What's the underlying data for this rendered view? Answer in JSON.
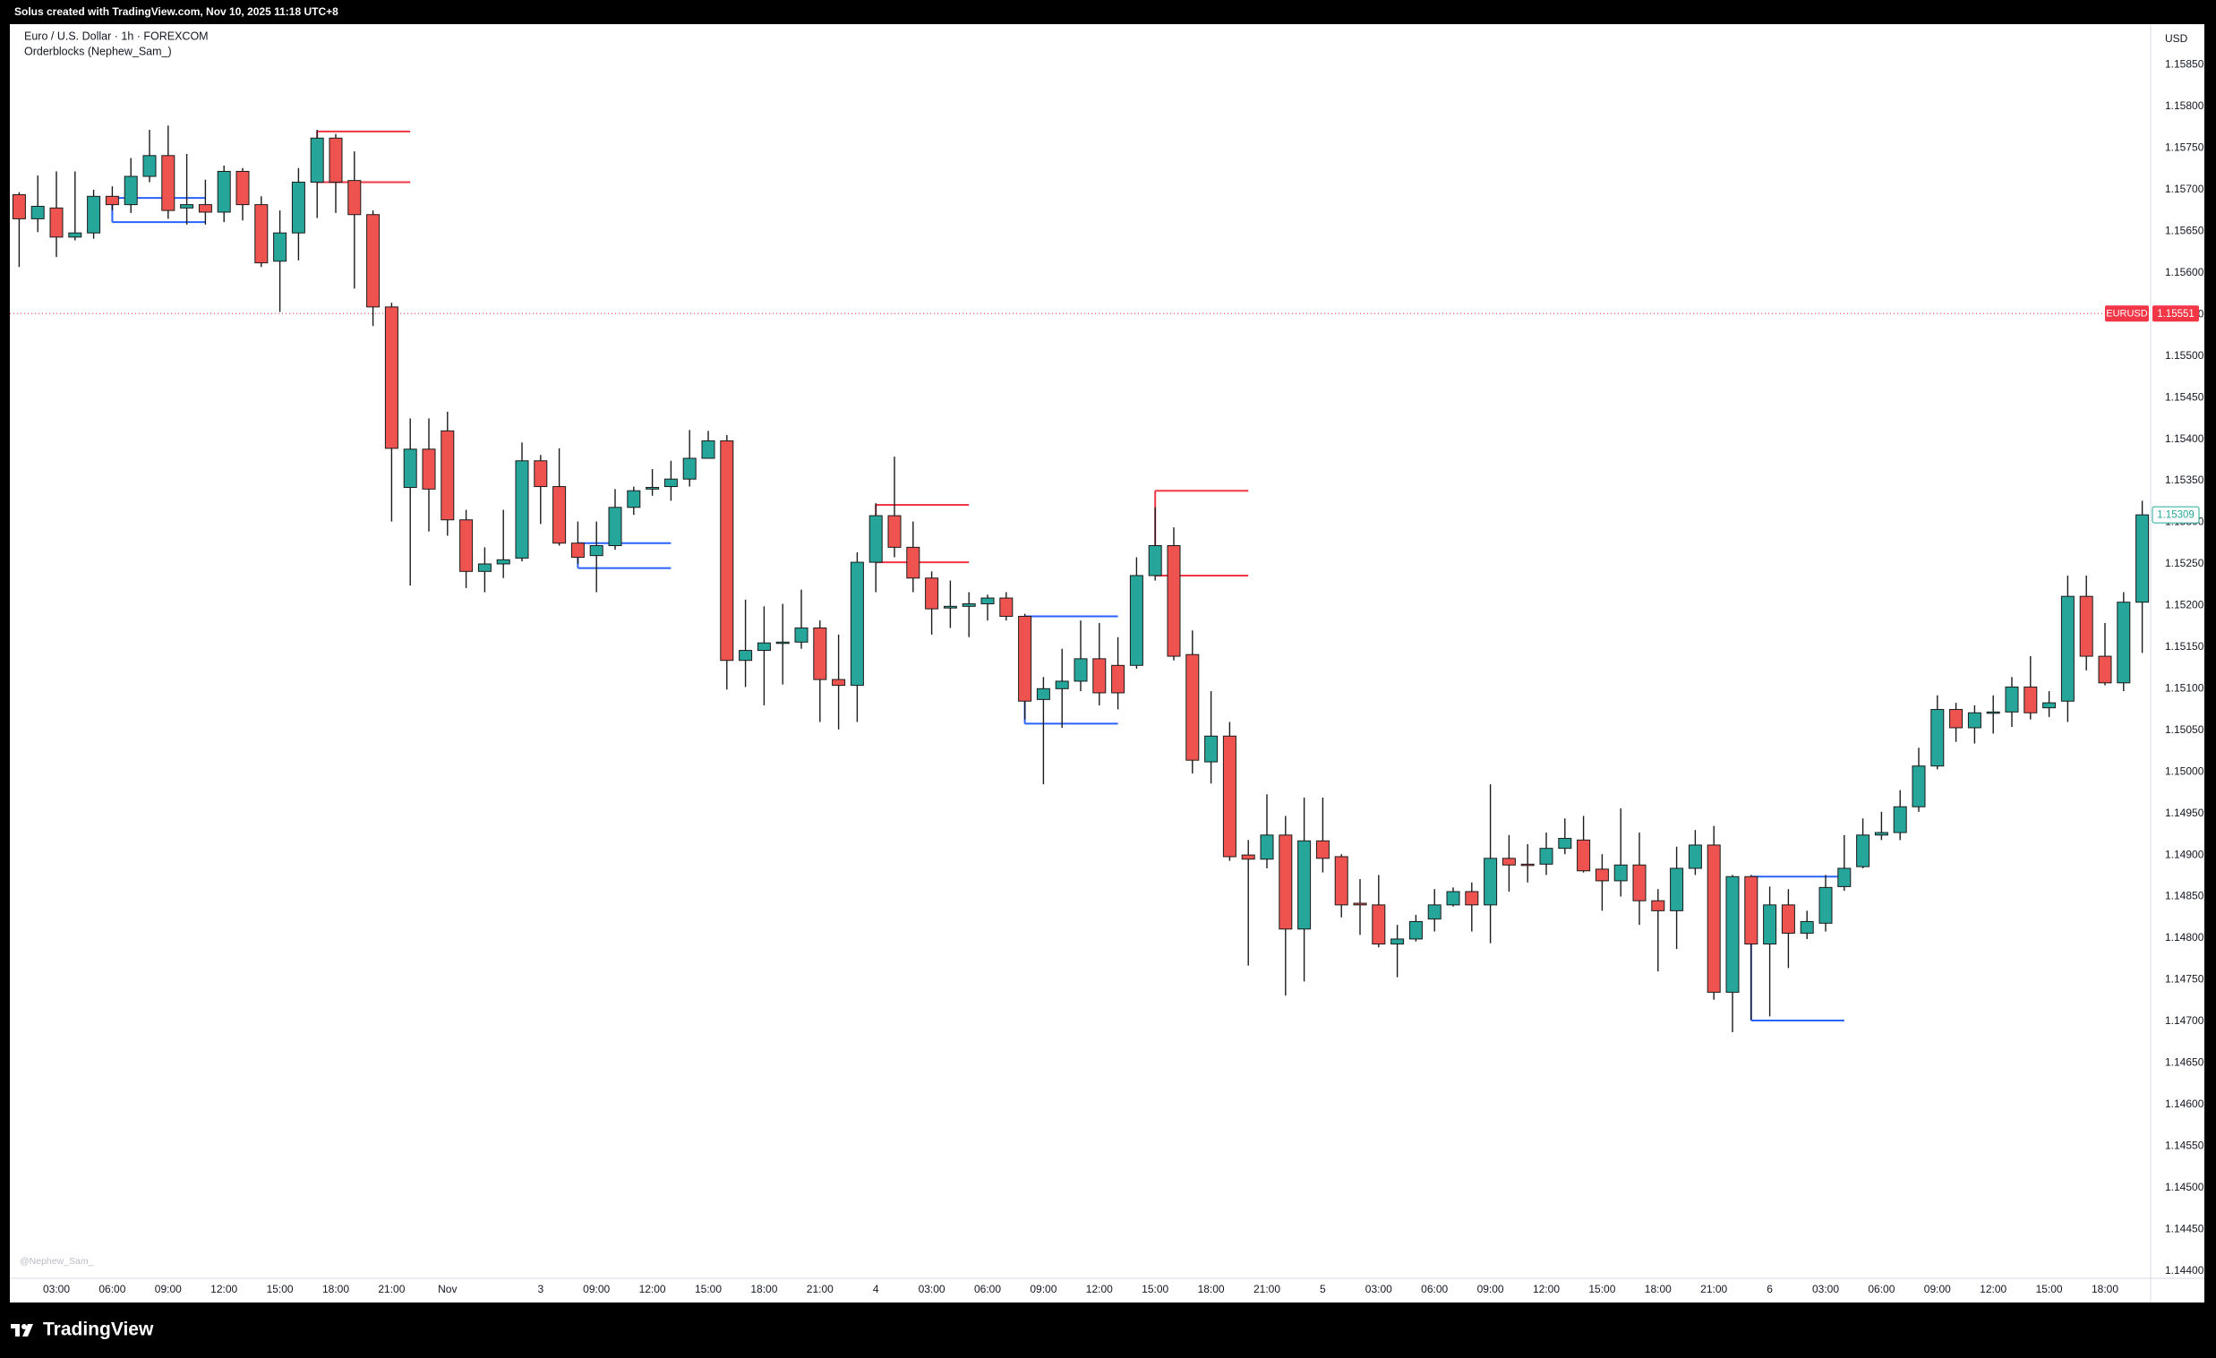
{
  "header": {
    "attribution": "Solus created with TradingView.com, Nov 10, 2025 11:18 UTC+8"
  },
  "footer": {
    "brand": "TradingView"
  },
  "chart_data": {
    "type": "candlestick",
    "title": "Euro / U.S. Dollar · 1h · FOREXCOM",
    "subtitle": "Orderblocks (Nephew_Sam_)",
    "watermark": "@Nephew_Sam_",
    "currency": "USD",
    "up_color": "#26a69a",
    "down_color": "#ef5350",
    "categories": [
      null,
      null,
      "03:00",
      null,
      null,
      "06:00",
      null,
      null,
      "09:00",
      null,
      null,
      "12:00",
      null,
      null,
      "15:00",
      null,
      null,
      "18:00",
      null,
      null,
      "21:00",
      null,
      null,
      "Nov",
      null,
      null,
      null,
      null,
      "3",
      null,
      null,
      "09:00",
      null,
      null,
      "12:00",
      null,
      null,
      "15:00",
      null,
      null,
      "18:00",
      null,
      null,
      "21:00",
      null,
      null,
      "4",
      null,
      null,
      "03:00",
      null,
      null,
      "06:00",
      null,
      null,
      "09:00",
      null,
      null,
      "12:00",
      null,
      null,
      "15:00",
      null,
      null,
      "18:00",
      null,
      null,
      "21:00",
      null,
      null,
      "5",
      null,
      null,
      "03:00",
      null,
      null,
      "06:00",
      null,
      null,
      "09:00",
      null,
      null,
      "12:00",
      null,
      null,
      "15:00",
      null,
      null,
      "18:00",
      null,
      null,
      "21:00",
      null,
      null,
      "6",
      null,
      null,
      "03:00",
      null,
      null,
      "06:00",
      null,
      null,
      "09:00",
      null,
      null,
      "12:00",
      null,
      null,
      "15:00",
      null,
      null,
      "18:00",
      null,
      null
    ],
    "open": [
      1.15694,
      1.15665,
      1.15678,
      1.15643,
      1.15648,
      1.15692,
      1.15682,
      1.15716,
      1.15741,
      1.15678,
      1.15682,
      1.15673,
      1.15722,
      1.15682,
      1.15614,
      1.15648,
      1.15709,
      1.15762,
      1.15711,
      1.1567,
      1.15559,
      1.15342,
      1.15388,
      1.1541,
      1.15303,
      1.15241,
      1.1525,
      1.15257,
      1.15374,
      1.15343,
      1.15275,
      1.1526,
      1.15272,
      1.15318,
      1.1534,
      1.15343,
      1.15352,
      1.15377,
      1.15398,
      1.15134,
      1.15146,
      1.15155,
      1.15156,
      1.15173,
      1.15111,
      1.15104,
      1.15252,
      1.15308,
      1.1527,
      1.15233,
      1.15197,
      1.15199,
      1.15202,
      1.15209,
      1.15187,
      1.15087,
      1.151,
      1.15109,
      1.15136,
      1.15128,
      1.15128,
      1.15236,
      1.15272,
      1.15141,
      1.15012,
      1.15043,
      1.149,
      1.14895,
      1.14924,
      1.14811,
      1.14917,
      1.14898,
      1.14842,
      1.1484,
      1.14793,
      1.14799,
      1.14823,
      1.1484,
      1.14856,
      1.1484,
      1.14896,
      1.14889,
      1.14889,
      1.14908,
      1.14918,
      1.14883,
      1.14869,
      1.14888,
      1.14845,
      1.14833,
      1.14884,
      1.14912,
      1.14735,
      1.14874,
      1.14793,
      1.1484,
      1.14806,
      1.14818,
      1.14862,
      1.14886,
      1.14924,
      1.14927,
      1.14958,
      1.15007,
      1.15075,
      1.15053,
      1.15071,
      1.15072,
      1.15102,
      1.15077,
      1.15085,
      1.15211,
      1.15139,
      1.15107,
      1.15204
    ],
    "high": [
      1.15697,
      1.15717,
      1.15722,
      1.15722,
      1.157,
      1.15704,
      1.15738,
      1.15772,
      1.15777,
      1.15743,
      1.15712,
      1.15729,
      1.15726,
      1.15692,
      1.15675,
      1.15726,
      1.15772,
      1.15767,
      1.15746,
      1.15675,
      1.15564,
      1.15425,
      1.15425,
      1.15433,
      1.15315,
      1.1527,
      1.15315,
      1.15396,
      1.15381,
      1.15389,
      1.15301,
      1.15301,
      1.1534,
      1.15343,
      1.15364,
      1.15374,
      1.15411,
      1.1541,
      1.15405,
      1.15207,
      1.15199,
      1.15202,
      1.15219,
      1.15182,
      1.15165,
      1.15264,
      1.15323,
      1.15379,
      1.15301,
      1.15241,
      1.1523,
      1.15216,
      1.15213,
      1.15216,
      1.1519,
      1.15114,
      1.15148,
      1.15182,
      1.15179,
      1.15162,
      1.15258,
      1.15318,
      1.15294,
      1.1517,
      1.15097,
      1.1506,
      1.14918,
      1.14973,
      1.14947,
      1.14969,
      1.14969,
      1.14901,
      1.14871,
      1.14876,
      1.14816,
      1.14828,
      1.14859,
      1.14861,
      1.14867,
      1.14985,
      1.14924,
      1.14913,
      1.14927,
      1.14944,
      1.14947,
      1.14901,
      1.14956,
      1.14927,
      1.14859,
      1.1491,
      1.1493,
      1.14935,
      1.14876,
      1.14876,
      1.14862,
      1.14859,
      1.14833,
      1.14876,
      1.14924,
      1.14944,
      1.14952,
      1.14978,
      1.15029,
      1.15092,
      1.15083,
      1.1508,
      1.15092,
      1.15114,
      1.15139,
      1.15097,
      1.15236,
      1.15236,
      1.15179,
      1.15216,
      1.15326
    ],
    "low": [
      1.15607,
      1.15649,
      1.15619,
      1.15639,
      1.15641,
      1.15675,
      1.15672,
      1.15709,
      1.15665,
      1.15658,
      1.15658,
      1.15661,
      1.15663,
      1.15607,
      1.15553,
      1.15615,
      1.15666,
      1.15672,
      1.15581,
      1.15536,
      1.15301,
      1.15224,
      1.15289,
      1.15284,
      1.15221,
      1.15216,
      1.15233,
      1.15253,
      1.15298,
      1.15272,
      1.1525,
      1.15216,
      1.15267,
      1.15309,
      1.15332,
      1.15326,
      1.15343,
      1.15377,
      1.15099,
      1.15102,
      1.1508,
      1.15105,
      1.15148,
      1.1506,
      1.15051,
      1.1506,
      1.15216,
      1.15258,
      1.15216,
      1.15165,
      1.15173,
      1.15162,
      1.15182,
      1.15182,
      1.15063,
      1.14985,
      1.15053,
      1.15097,
      1.1508,
      1.15075,
      1.15124,
      1.1523,
      1.15134,
      1.14998,
      1.14986,
      1.14893,
      1.14767,
      1.14884,
      1.14731,
      1.14748,
      1.14879,
      1.14825,
      1.14804,
      1.14789,
      1.14753,
      1.14796,
      1.14808,
      1.14838,
      1.14808,
      1.14794,
      1.14856,
      1.14867,
      1.14876,
      1.14901,
      1.14879,
      1.14833,
      1.1485,
      1.14816,
      1.1476,
      1.14787,
      1.14876,
      1.14726,
      1.14687,
      1.14702,
      1.14706,
      1.14764,
      1.14799,
      1.14808,
      1.14857,
      1.14884,
      1.14918,
      1.14918,
      1.14952,
      1.15003,
      1.15036,
      1.15034,
      1.15046,
      1.15054,
      1.15063,
      1.15066,
      1.1506,
      1.15122,
      1.15104,
      1.15097,
      1.15143
    ],
    "close": [
      1.15665,
      1.1568,
      1.15643,
      1.15648,
      1.15692,
      1.15682,
      1.15716,
      1.15741,
      1.15675,
      1.15682,
      1.15673,
      1.15722,
      1.15682,
      1.15612,
      1.15648,
      1.15709,
      1.15762,
      1.15709,
      1.1567,
      1.15559,
      1.15389,
      1.15388,
      1.1534,
      1.15303,
      1.15241,
      1.1525,
      1.15255,
      1.15374,
      1.15343,
      1.15275,
      1.15258,
      1.15272,
      1.15318,
      1.15338,
      1.15342,
      1.15352,
      1.15377,
      1.15398,
      1.15134,
      1.15146,
      1.15155,
      1.15156,
      1.15173,
      1.15111,
      1.15104,
      1.15252,
      1.15308,
      1.1527,
      1.15233,
      1.15196,
      1.15199,
      1.15202,
      1.15209,
      1.15187,
      1.15085,
      1.151,
      1.15109,
      1.15136,
      1.15095,
      1.15095,
      1.15236,
      1.15272,
      1.15139,
      1.15014,
      1.15043,
      1.14898,
      1.14895,
      1.14924,
      1.14811,
      1.14917,
      1.14896,
      1.1484,
      1.1484,
      1.14793,
      1.14799,
      1.1482,
      1.1484,
      1.14856,
      1.1484,
      1.14896,
      1.14888,
      1.14888,
      1.14908,
      1.1492,
      1.14881,
      1.14869,
      1.14888,
      1.14845,
      1.14833,
      1.14884,
      1.14912,
      1.14735,
      1.14874,
      1.14793,
      1.1484,
      1.14806,
      1.1482,
      1.14861,
      1.14884,
      1.14924,
      1.14927,
      1.14958,
      1.15007,
      1.15075,
      1.15053,
      1.15071,
      1.15072,
      1.15102,
      1.15071,
      1.15083,
      1.15211,
      1.15139,
      1.15107,
      1.15204,
      1.15309
    ],
    "ylim": [
      1.14391,
      1.15899
    ],
    "yticks": [
      {
        "value": 1.144,
        "label": "1.14400"
      },
      {
        "value": 1.1445,
        "label": "1.14450"
      },
      {
        "value": 1.145,
        "label": "1.14500"
      },
      {
        "value": 1.1455,
        "label": "1.14550"
      },
      {
        "value": 1.146,
        "label": "1.14600"
      },
      {
        "value": 1.1465,
        "label": "1.14650"
      },
      {
        "value": 1.147,
        "label": "1.14700"
      },
      {
        "value": 1.1475,
        "label": "1.14750"
      },
      {
        "value": 1.148,
        "label": "1.14800"
      },
      {
        "value": 1.1485,
        "label": "1.14850"
      },
      {
        "value": 1.149,
        "label": "1.14900"
      },
      {
        "value": 1.1495,
        "label": "1.14950"
      },
      {
        "value": 1.15,
        "label": "1.15000"
      },
      {
        "value": 1.1505,
        "label": "1.15050"
      },
      {
        "value": 1.151,
        "label": "1.15100"
      },
      {
        "value": 1.1515,
        "label": "1.15150"
      },
      {
        "value": 1.152,
        "label": "1.15200"
      },
      {
        "value": 1.1525,
        "label": "1.15250"
      },
      {
        "value": 1.153,
        "label": "1.15300"
      },
      {
        "value": 1.1535,
        "label": "1.15350"
      },
      {
        "value": 1.154,
        "label": "1.15400"
      },
      {
        "value": 1.1545,
        "label": "1.15450"
      },
      {
        "value": 1.155,
        "label": "1.15500"
      },
      {
        "value": 1.1555,
        "label": "1.15550"
      },
      {
        "value": 1.156,
        "label": "1.15600"
      },
      {
        "value": 1.1565,
        "label": "1.15650"
      },
      {
        "value": 1.157,
        "label": "1.15700"
      },
      {
        "value": 1.1575,
        "label": "1.15750"
      },
      {
        "value": 1.158,
        "label": "1.15800"
      },
      {
        "value": 1.1585,
        "label": "1.15850"
      }
    ],
    "last_price": {
      "symbol": "EURUSD",
      "value": 1.15551,
      "color": "#f23645"
    },
    "marker_price": {
      "value": 1.15309,
      "color": "#26a69a"
    },
    "orderblocks": [
      {
        "start": 5,
        "end": 10,
        "top": 1.1569,
        "bottom": 1.15661,
        "color": "#2962ff"
      },
      {
        "start": 16,
        "end": 21,
        "top": 1.1577,
        "bottom": 1.15709,
        "color": "#f23645"
      },
      {
        "start": 30,
        "end": 35,
        "top": 1.15275,
        "bottom": 1.15245,
        "color": "#2962ff"
      },
      {
        "start": 46,
        "end": 51,
        "top": 1.15321,
        "bottom": 1.15252,
        "color": "#f23645"
      },
      {
        "start": 54,
        "end": 59,
        "top": 1.15187,
        "bottom": 1.15058,
        "color": "#2962ff"
      },
      {
        "start": 61,
        "end": 66,
        "top": 1.15338,
        "bottom": 1.15236,
        "color": "#f23645"
      },
      {
        "start": 93,
        "end": 98,
        "top": 1.14874,
        "bottom": 1.14701,
        "color": "#2962ff"
      }
    ]
  }
}
